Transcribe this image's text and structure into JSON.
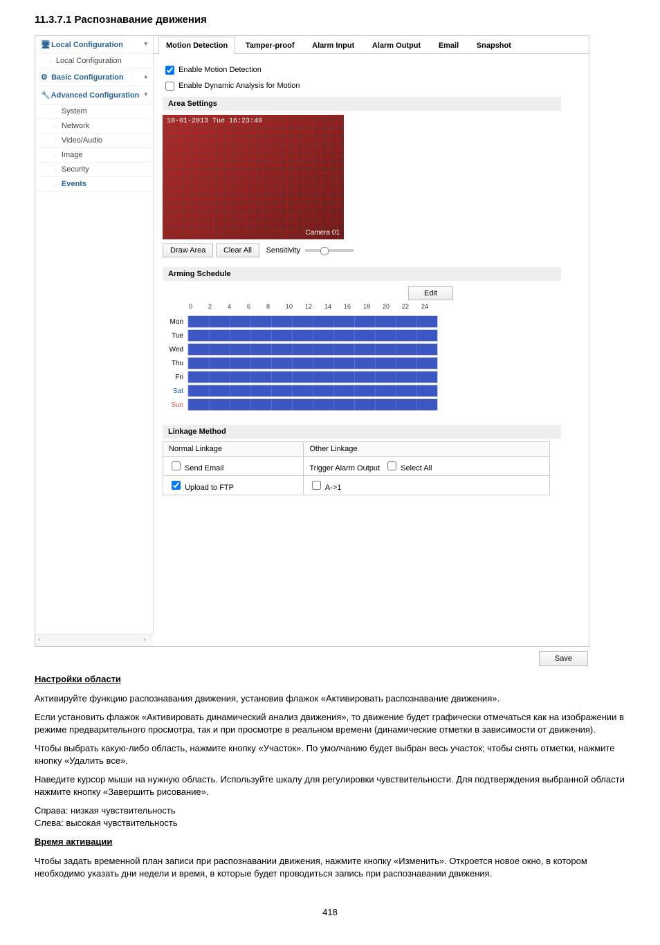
{
  "section_title": "11.3.7.1 Распознавание движения",
  "sidebar": {
    "local_conf_head": "Local Configuration",
    "local_conf_item": "Local Configuration",
    "basic_conf_head": "Basic Configuration",
    "adv_conf_head": "Advanced Configuration",
    "items": {
      "system": "System",
      "network": "Network",
      "videoaudio": "Video/Audio",
      "image": "Image",
      "security": "Security",
      "events": "Events"
    },
    "chev_down": "▾",
    "chev_up": "▴",
    "arr_left": "‹",
    "arr_right": "›"
  },
  "tabs": {
    "motion": "Motion Detection",
    "tamper": "Tamper-proof",
    "alarm_in": "Alarm Input",
    "alarm_out": "Alarm Output",
    "email": "Email",
    "snapshot": "Snapshot"
  },
  "checks": {
    "enable_md": "Enable Motion Detection",
    "enable_dyn": "Enable Dynamic Analysis for Motion"
  },
  "area": {
    "header": "Area Settings",
    "timestamp": "10-01-2013 Tue 16:23:49",
    "camera": "Camera 01",
    "draw_btn": "Draw Area",
    "clear_btn": "Clear All",
    "sens_label": "Sensitivity"
  },
  "arming": {
    "header": "Arming Schedule",
    "edit_btn": "Edit",
    "hours": [
      "0",
      "2",
      "4",
      "6",
      "8",
      "10",
      "12",
      "14",
      "16",
      "18",
      "20",
      "22",
      "24"
    ],
    "days": [
      {
        "label": "Mon",
        "cls": ""
      },
      {
        "label": "Tue",
        "cls": ""
      },
      {
        "label": "Wed",
        "cls": ""
      },
      {
        "label": "Thu",
        "cls": ""
      },
      {
        "label": "Fri",
        "cls": ""
      },
      {
        "label": "Sat",
        "cls": "sat"
      },
      {
        "label": "Sun",
        "cls": "sun"
      }
    ]
  },
  "linkage": {
    "header": "Linkage Method",
    "col_normal": "Normal Linkage",
    "col_other": "Other Linkage",
    "send_email": "Send Email",
    "trigger_out": "Trigger Alarm Output",
    "select_all": "Select All",
    "upload_ftp": "Upload to FTP",
    "a1": "A->1"
  },
  "save_btn": "Save",
  "body": {
    "sub_area": "Настройки области",
    "p1": "Активируйте функцию распознавания движения, установив флажок «Активировать распознавание движения».",
    "p2": "Если установить флажок «Активировать динамический анализ движения», то движение будет графически отмечаться как на изображении в режиме предварительного просмотра, так и при просмотре в реальном времени (динамические отметки в зависимости от движения).",
    "p3": "Чтобы выбрать какую-либо область, нажмите кнопку «Участок». По умолчанию будет выбран весь участок; чтобы снять отметки, нажмите кнопку «Удалить все».",
    "p4": "Наведите курсор мыши на нужную область. Используйте шкалу для регулировки чувствительности. Для подтверждения выбранной области нажмите кнопку «Завершить рисование».",
    "p5": "Справа: низкая чувствительность",
    "p6": "Слева: высокая чувствительность",
    "sub_time": "Время активации",
    "p7": "Чтобы задать временной план записи при распознавании движения, нажмите кнопку «Изменить». Откроется новое окно, в котором необходимо указать дни недели и время, в которые будет проводиться запись при распознавании движения."
  },
  "page_number": "418"
}
